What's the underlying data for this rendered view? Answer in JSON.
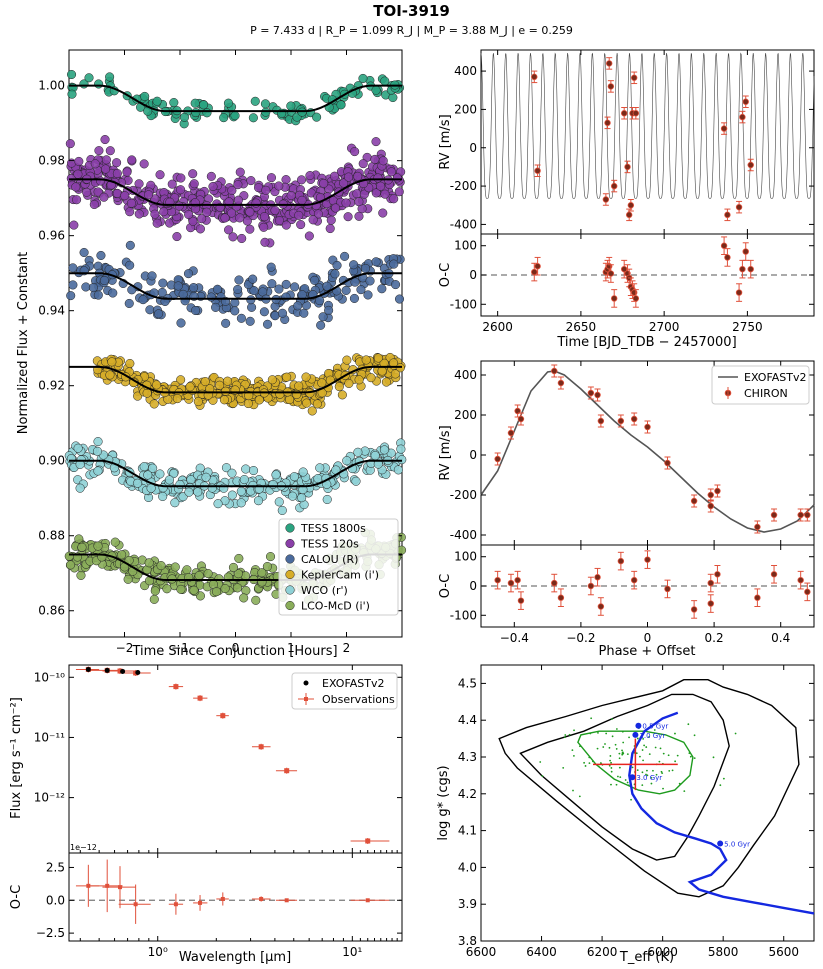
{
  "figure": {
    "title": "TOI-3919",
    "subtitle": "P = 7.433 d | R_P = 1.099 R_J | M_P = 3.88 M_J | e = 0.259"
  },
  "chart_data": [
    {
      "id": "transits",
      "type": "scatter",
      "xlabel": "Time Since Conjunction [Hours]",
      "ylabel": "Normalized Flux + Constant",
      "xlim": [
        -3.0,
        3.0
      ],
      "ylim": [
        0.853,
        1.0095
      ],
      "xticks": [
        -2,
        -1,
        0,
        1,
        2
      ],
      "yticks": [
        0.86,
        0.88,
        0.9,
        0.92,
        0.94,
        0.96,
        0.98,
        1.0
      ],
      "ytick_labels": [
        "0.86",
        "0.88",
        "0.90",
        "0.92",
        "0.94",
        "0.96",
        "0.98",
        "1.00"
      ],
      "legend": {
        "position": "lower-right",
        "entries": [
          "TESS 1800s",
          "TESS 120s",
          "CALOU (R)",
          "KeplerCam (i')",
          "WCO (r')",
          "LCO-McD (i')"
        ]
      },
      "series": [
        {
          "name": "TESS 1800s",
          "color": "#2aa380",
          "offset": 1.0,
          "depth": 0.0068,
          "noise": 0.0014,
          "range": [
            -2.98,
            2.98
          ],
          "n": 120
        },
        {
          "name": "TESS 120s",
          "color": "#8a3fa8",
          "offset": 0.975,
          "depth": 0.0068,
          "noise": 0.0035,
          "range": [
            -2.98,
            2.98
          ],
          "n": 520
        },
        {
          "name": "CALOU (R)",
          "color": "#4a6a9c",
          "offset": 0.95,
          "depth": 0.0068,
          "noise": 0.0033,
          "range": [
            -2.98,
            2.98
          ],
          "n": 230
        },
        {
          "name": "KeplerCam (i')",
          "color": "#d6ad28",
          "offset": 0.925,
          "depth": 0.0068,
          "noise": 0.0018,
          "range": [
            -2.5,
            3.0
          ],
          "n": 380
        },
        {
          "name": "WCO (r')",
          "color": "#8fd1d6",
          "offset": 0.9,
          "depth": 0.0068,
          "noise": 0.0022,
          "range": [
            -3.0,
            3.0
          ],
          "n": 300
        },
        {
          "name": "LCO-McD (i')",
          "color": "#8aad5a",
          "offset": 0.875,
          "depth": 0.0068,
          "noise": 0.0023,
          "range": [
            -3.0,
            3.0
          ],
          "n": 330
        }
      ],
      "model": {
        "t1": -2.45,
        "t2": -1.25,
        "t3": 1.25,
        "t4": 2.45
      }
    },
    {
      "id": "rv_time",
      "type": "scatter",
      "xlabel": "Time [BJD_TDB − 2457000]",
      "ylabel": "RV [m/s]",
      "xlim": [
        2590,
        2790
      ],
      "ylim": [
        -450,
        510
      ],
      "xticks": [
        2600,
        2650,
        2700,
        2750
      ],
      "yticks": [
        -400,
        -200,
        0,
        200,
        400
      ],
      "period_days": 7.433,
      "model_K": 330,
      "model_offset": 20,
      "x": [
        2622,
        2624,
        2665,
        2666,
        2667,
        2668,
        2670,
        2676,
        2678,
        2679,
        2680,
        2681,
        2682,
        2683,
        2736,
        2738,
        2745,
        2747,
        2749,
        2752
      ],
      "y": [
        370,
        -120,
        -270,
        130,
        440,
        320,
        -200,
        180,
        -100,
        -350,
        -300,
        180,
        365,
        180,
        100,
        -350,
        -310,
        160,
        240,
        -90
      ],
      "err": [
        30,
        30,
        30,
        30,
        30,
        30,
        30,
        30,
        30,
        30,
        30,
        30,
        30,
        30,
        30,
        30,
        30,
        30,
        30,
        30
      ]
    },
    {
      "id": "rv_time_oc",
      "type": "scatter",
      "ylabel": "O-C",
      "xlim": [
        2590,
        2790
      ],
      "ylim": [
        -140,
        140
      ],
      "yticks": [
        -100,
        0,
        100
      ],
      "x": [
        2622,
        2624,
        2665,
        2666,
        2667,
        2668,
        2670,
        2676,
        2678,
        2679,
        2680,
        2681,
        2682,
        2683,
        2736,
        2738,
        2745,
        2747,
        2749,
        2752
      ],
      "y": [
        10,
        30,
        10,
        20,
        30,
        5,
        -80,
        20,
        5,
        -10,
        -40,
        -50,
        -60,
        -80,
        100,
        60,
        -60,
        20,
        80,
        20
      ],
      "err": [
        30,
        30,
        30,
        30,
        30,
        30,
        30,
        30,
        30,
        30,
        30,
        30,
        30,
        30,
        30,
        30,
        30,
        30,
        30,
        30
      ]
    },
    {
      "id": "rv_phase",
      "type": "scatter",
      "xlabel": "Phase + Offset",
      "ylabel": "RV [m/s]",
      "xlim": [
        -0.5,
        0.5
      ],
      "ylim": [
        -450,
        470
      ],
      "xticks": [
        -0.4,
        -0.2,
        0.0,
        0.2,
        0.4
      ],
      "yticks": [
        -400,
        -200,
        0,
        200,
        400
      ],
      "legend": {
        "position": "top-right",
        "entries": [
          "EXOFASTv2",
          "CHIRON"
        ]
      },
      "model_x": [
        -0.5,
        -0.45,
        -0.4,
        -0.35,
        -0.3,
        -0.28,
        -0.25,
        -0.2,
        -0.15,
        -0.1,
        -0.05,
        0.0,
        0.05,
        0.1,
        0.15,
        0.2,
        0.25,
        0.3,
        0.35,
        0.4,
        0.45,
        0.5
      ],
      "model_y": [
        -200,
        -80,
        120,
        320,
        415,
        420,
        400,
        330,
        250,
        170,
        100,
        40,
        -30,
        -110,
        -190,
        -260,
        -320,
        -365,
        -385,
        -370,
        -330,
        -250
      ],
      "x": [
        -0.45,
        -0.41,
        -0.39,
        -0.38,
        -0.28,
        -0.26,
        -0.17,
        -0.15,
        -0.14,
        -0.08,
        -0.04,
        0.0,
        0.06,
        0.14,
        0.19,
        0.19,
        0.21,
        0.33,
        0.38,
        0.46,
        0.48
      ],
      "y": [
        -20,
        110,
        220,
        180,
        420,
        360,
        310,
        300,
        170,
        170,
        180,
        140,
        -40,
        -230,
        -200,
        -255,
        -180,
        -360,
        -300,
        -300,
        -300
      ],
      "err": [
        30,
        30,
        30,
        30,
        30,
        30,
        30,
        30,
        30,
        30,
        30,
        30,
        30,
        30,
        30,
        30,
        30,
        30,
        30,
        30,
        30
      ]
    },
    {
      "id": "rv_phase_oc",
      "type": "scatter",
      "ylabel": "O-C",
      "xlim": [
        -0.5,
        0.5
      ],
      "ylim": [
        -140,
        140
      ],
      "yticks": [
        -100,
        0,
        100
      ],
      "x": [
        -0.45,
        -0.41,
        -0.39,
        -0.38,
        -0.28,
        -0.26,
        -0.17,
        -0.15,
        -0.14,
        -0.08,
        -0.04,
        0.0,
        0.06,
        0.14,
        0.19,
        0.19,
        0.21,
        0.33,
        0.38,
        0.46,
        0.48
      ],
      "y": [
        20,
        10,
        20,
        -50,
        10,
        -40,
        0,
        30,
        -70,
        85,
        20,
        90,
        -10,
        -80,
        -60,
        10,
        40,
        -40,
        40,
        20,
        -20
      ],
      "err": [
        30,
        30,
        30,
        30,
        30,
        30,
        30,
        30,
        30,
        30,
        30,
        30,
        30,
        30,
        30,
        30,
        30,
        30,
        30,
        30,
        30
      ]
    },
    {
      "id": "sed",
      "type": "scatter",
      "xscale": "log",
      "yscale": "log",
      "xlabel": "Wavelength [μm]",
      "ylabel": "Flux [erg s⁻¹ cm⁻²]",
      "xlim": [
        0.35,
        18
      ],
      "ylim": [
        1.2e-13,
        1.6e-10
      ],
      "xticks": [
        1,
        10
      ],
      "xtick_labels": [
        "10⁰",
        "10¹"
      ],
      "yticks": [
        1e-12,
        1e-11,
        1e-10
      ],
      "ytick_labels": [
        "10⁻¹²",
        "10⁻¹¹",
        "10⁻¹⁰"
      ],
      "offset_label": "1e−12",
      "legend": {
        "position": "top-right",
        "entries": [
          "EXOFASTv2",
          "Observations"
        ]
      },
      "model_x": [
        0.44,
        0.55,
        0.66,
        0.79
      ],
      "model_y": [
        1.35e-10,
        1.3e-10,
        1.25e-10,
        1.2e-10
      ],
      "obs_x": [
        0.44,
        0.55,
        0.64,
        0.77,
        1.24,
        1.65,
        2.16,
        3.4,
        4.6,
        12.0
      ],
      "obs_y": [
        1.35e-10,
        1.3e-10,
        1.27e-10,
        1.18e-10,
        7e-11,
        4.5e-11,
        2.3e-11,
        7e-12,
        2.8e-12,
        1.9e-13
      ],
      "obs_xlo": [
        0.38,
        0.45,
        0.52,
        0.63,
        1.14,
        1.52,
        2.0,
        3.05,
        4.05,
        9.8
      ],
      "obs_xhi": [
        0.5,
        0.66,
        0.77,
        0.92,
        1.35,
        1.8,
        2.32,
        3.8,
        5.2,
        15.5
      ]
    },
    {
      "id": "sed_oc",
      "type": "scatter",
      "xscale": "log",
      "ylabel": "O-C",
      "xlim": [
        0.35,
        18
      ],
      "ylim": [
        -3.1,
        3.6
      ],
      "yticks": [
        -2.5,
        0.0,
        2.5
      ],
      "ytick_labels": [
        "−2.5",
        "0.0",
        "2.5"
      ],
      "x": [
        0.44,
        0.55,
        0.64,
        0.77,
        1.24,
        1.65,
        2.16,
        3.4,
        4.6,
        12.0
      ],
      "y": [
        1.1,
        1.1,
        1.0,
        -0.3,
        -0.3,
        -0.2,
        0.1,
        0.1,
        0.0,
        0.0
      ],
      "yerr": [
        1.6,
        2.0,
        1.6,
        1.5,
        0.8,
        0.6,
        0.5,
        0.2,
        0.1,
        0.1
      ],
      "xlo": [
        0.38,
        0.45,
        0.52,
        0.63,
        1.14,
        1.52,
        2.0,
        3.05,
        4.05,
        9.8
      ],
      "xhi": [
        0.5,
        0.66,
        0.77,
        0.92,
        1.35,
        1.8,
        2.32,
        3.8,
        5.2,
        15.5
      ]
    },
    {
      "id": "hr",
      "type": "line",
      "xlabel": "T_eff (K)",
      "ylabel": "log g* (cgs)",
      "xlim": [
        6600,
        5500
      ],
      "ylim": [
        3.8,
        4.55
      ],
      "xticks": [
        6600,
        6400,
        6200,
        6000,
        5800,
        5600
      ],
      "yticks": [
        3.8,
        3.9,
        4.0,
        4.1,
        4.2,
        4.3,
        4.4,
        4.5
      ],
      "ytick_labels": [
        "3.8",
        "3.9",
        "4.0",
        "4.1",
        "4.2",
        "4.3",
        "4.4",
        "4.5"
      ],
      "track_x": [
        5950,
        6000,
        6060,
        6100,
        6110,
        6100,
        6070,
        6020,
        5960,
        5890,
        5840,
        5810,
        5790,
        5840,
        5910,
        5880,
        5800,
        5700,
        5600,
        5500
      ],
      "track_y": [
        4.42,
        4.405,
        4.37,
        4.31,
        4.25,
        4.2,
        4.16,
        4.12,
        4.095,
        4.078,
        4.065,
        4.05,
        4.02,
        3.98,
        3.96,
        3.94,
        3.92,
        3.905,
        3.89,
        3.875
      ],
      "outer_contour_x": [
        6540,
        6520,
        6480,
        6350,
        6200,
        6060,
        5950,
        5880,
        5800,
        5750,
        5700,
        5630,
        5550,
        5560,
        5640,
        5720,
        5800,
        5850,
        5930,
        6000,
        6100,
        6200,
        6320,
        6450,
        6540
      ],
      "outer_contour_y": [
        4.35,
        4.31,
        4.27,
        4.18,
        4.08,
        3.99,
        3.93,
        3.92,
        3.95,
        4.0,
        4.06,
        4.14,
        4.28,
        4.38,
        4.44,
        4.47,
        4.49,
        4.51,
        4.51,
        4.48,
        4.46,
        4.44,
        4.41,
        4.38,
        4.35
      ],
      "mid_contour_x": [
        6470,
        6400,
        6300,
        6200,
        6100,
        6020,
        5960,
        5920,
        5880,
        5830,
        5780,
        5800,
        5840,
        5900,
        5970,
        6050,
        6150,
        6260,
        6380,
        6470
      ],
      "mid_contour_y": [
        4.31,
        4.25,
        4.18,
        4.11,
        4.05,
        4.02,
        4.03,
        4.08,
        4.14,
        4.22,
        4.33,
        4.4,
        4.45,
        4.47,
        4.47,
        4.44,
        4.41,
        4.37,
        4.34,
        4.31
      ],
      "inner_contour_x": [
        6280,
        6220,
        6160,
        6080,
        6010,
        5960,
        5910,
        5900,
        5930,
        5990,
        6060,
        6140,
        6210,
        6270,
        6280
      ],
      "inner_contour_y": [
        4.34,
        4.28,
        4.24,
        4.21,
        4.2,
        4.21,
        4.25,
        4.3,
        4.34,
        4.36,
        4.37,
        4.37,
        4.37,
        4.36,
        4.34
      ],
      "point": {
        "teff": 6090,
        "logg": 4.28,
        "teff_err": 140,
        "logg_err": 0.07
      },
      "age_markers": [
        {
          "label": "5.0 Gyr",
          "teff": 5810,
          "logg": 4.065
        },
        {
          "label": "3.0 Gyr",
          "teff": 6100,
          "logg": 4.245
        },
        {
          "label": "1.0 Gyr",
          "teff": 6090,
          "logg": 4.36
        },
        {
          "label": "0.5 Gyr",
          "teff": 6080,
          "logg": 4.385
        }
      ]
    }
  ]
}
